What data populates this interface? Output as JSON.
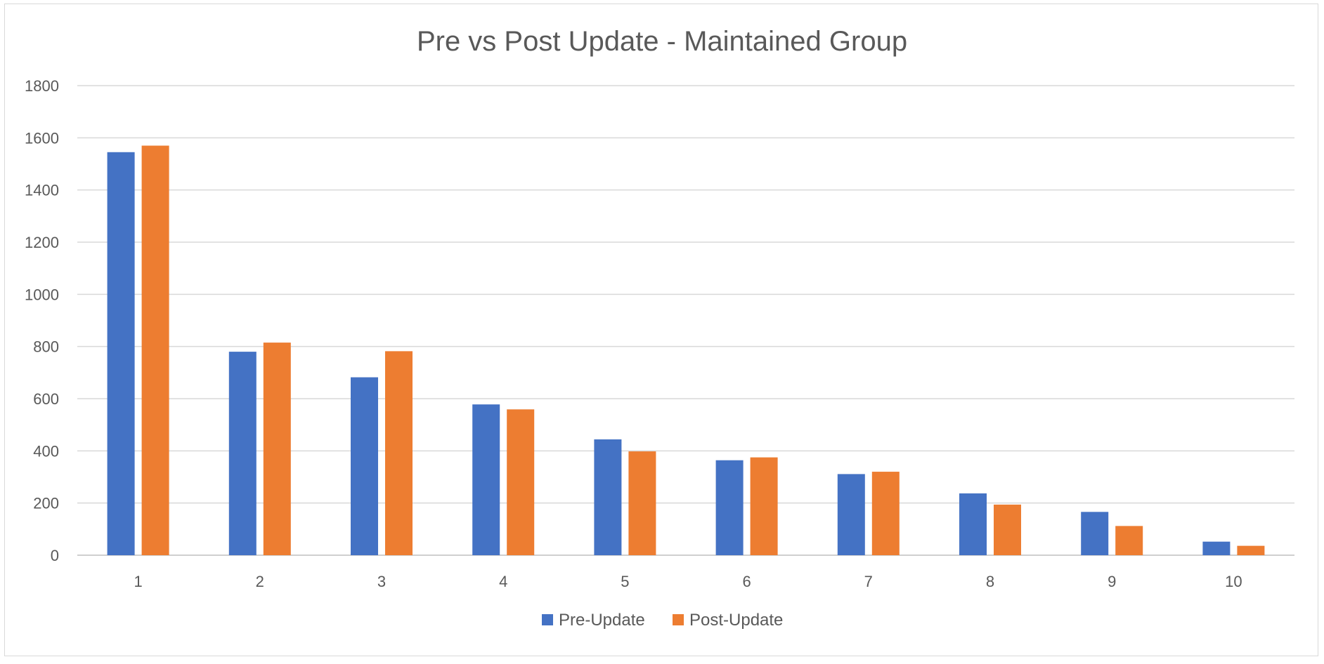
{
  "chart_data": {
    "type": "bar",
    "title": "Pre vs Post Update - Maintained Group",
    "categories": [
      "1",
      "2",
      "3",
      "4",
      "5",
      "6",
      "7",
      "8",
      "9",
      "10"
    ],
    "series": [
      {
        "name": "Pre-Update",
        "color": "#4472c4",
        "values": [
          1545,
          780,
          682,
          578,
          444,
          364,
          311,
          237,
          166,
          52
        ]
      },
      {
        "name": "Post-Update",
        "color": "#ed7d31",
        "values": [
          1570,
          815,
          782,
          559,
          398,
          375,
          320,
          194,
          112,
          36
        ]
      }
    ],
    "ylim": [
      0,
      1800
    ],
    "yticks": [
      "0",
      "200",
      "400",
      "600",
      "800",
      "1000",
      "1200",
      "1400",
      "1600",
      "1800"
    ],
    "grid": true,
    "legend_position": "bottom"
  }
}
